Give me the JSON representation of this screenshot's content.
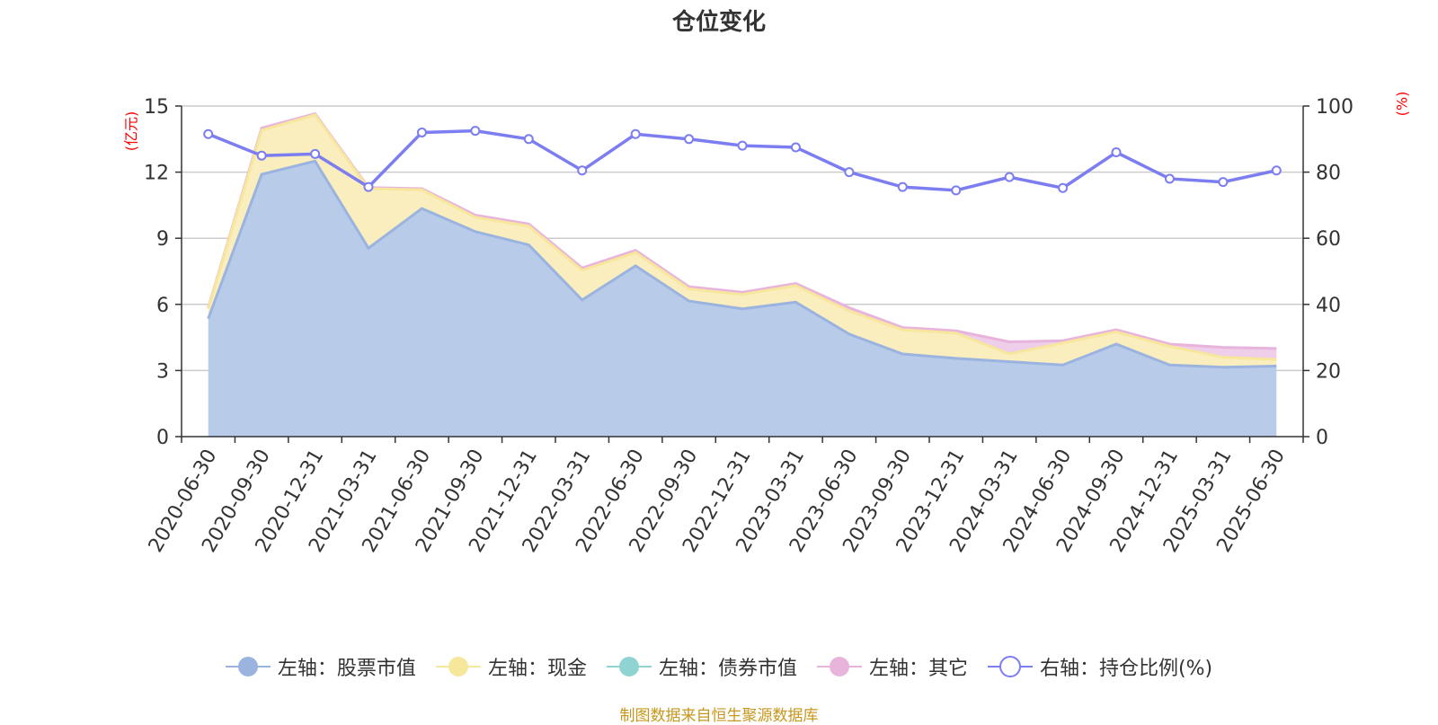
{
  "title": "仓位变化",
  "source": "制图数据来自恒生聚源数据库",
  "colors": {
    "stock": "#9bb4df",
    "stock_fill": "#b8cbe9",
    "cash": "#f7e79c",
    "cash_fill": "#faedbe",
    "bond": "#8fd3d3",
    "other": "#e8b4dc",
    "other_fill": "#ecc9e6",
    "ratio": "#7b7df0",
    "grid": "#cccccc",
    "axis": "#333333",
    "unit": "#ff0000"
  },
  "chart_data": {
    "type": "area",
    "title": "仓位变化",
    "categories": [
      "2020-06-30",
      "2020-09-30",
      "2020-12-31",
      "2021-03-31",
      "2021-06-30",
      "2021-09-30",
      "2021-12-31",
      "2022-03-31",
      "2022-06-30",
      "2022-09-30",
      "2022-12-31",
      "2023-03-31",
      "2023-06-30",
      "2023-09-30",
      "2023-12-31",
      "2024-03-31",
      "2024-06-30",
      "2024-09-30",
      "2024-12-31",
      "2025-03-31",
      "2025-06-30"
    ],
    "left_axis": {
      "unit": "(亿元)",
      "ylim": [
        0,
        15
      ],
      "ticks": [
        "0",
        "3",
        "6",
        "9",
        "12",
        "15"
      ]
    },
    "right_axis": {
      "unit": "(%)",
      "ylim": [
        0,
        100
      ],
      "ticks": [
        "0",
        "20",
        "40",
        "60",
        "80",
        "100"
      ]
    },
    "grid": true,
    "legend_position": "bottom",
    "series": [
      {
        "name": "左轴：股票市值",
        "axis": "left",
        "stacked": true,
        "values": [
          5.35,
          11.9,
          12.5,
          8.55,
          10.35,
          9.3,
          8.7,
          6.2,
          7.75,
          6.15,
          5.8,
          6.1,
          4.65,
          3.75,
          3.55,
          3.4,
          3.25,
          4.2,
          3.25,
          3.15,
          3.2
        ]
      },
      {
        "name": "左轴：现金",
        "axis": "left",
        "stacked": true,
        "values": [
          0.45,
          2.0,
          2.1,
          2.7,
          0.85,
          0.65,
          0.85,
          1.35,
          0.6,
          0.55,
          0.65,
          0.75,
          1.05,
          1.1,
          1.15,
          0.35,
          1.0,
          0.55,
          0.85,
          0.45,
          0.3
        ]
      },
      {
        "name": "左轴：债券市值",
        "axis": "left",
        "stacked": true,
        "values": [
          0,
          0,
          0,
          0,
          0,
          0,
          0,
          0,
          0,
          0,
          0,
          0,
          0,
          0,
          0,
          0,
          0,
          0,
          0,
          0,
          0
        ]
      },
      {
        "name": "左轴：其它",
        "axis": "left",
        "stacked": true,
        "values": [
          0.05,
          0.1,
          0.05,
          0.05,
          0.05,
          0.1,
          0.1,
          0.1,
          0.1,
          0.1,
          0.1,
          0.1,
          0.15,
          0.1,
          0.1,
          0.55,
          0.1,
          0.1,
          0.1,
          0.45,
          0.5
        ]
      },
      {
        "name": "右轴：持仓比例(%)",
        "axis": "right",
        "type": "line",
        "values": [
          91.5,
          85,
          85.5,
          75.5,
          92,
          92.5,
          90,
          80.5,
          91.5,
          90,
          88,
          87.5,
          80,
          75.5,
          74.5,
          78.5,
          75.2,
          86,
          78,
          77,
          80.5
        ]
      }
    ]
  },
  "legend": [
    {
      "label": "左轴：股票市值",
      "icon": "filled-circle-stock"
    },
    {
      "label": "左轴：现金",
      "icon": "filled-circle-cash"
    },
    {
      "label": "左轴：债券市值",
      "icon": "filled-circle-bond"
    },
    {
      "label": "左轴：其它",
      "icon": "filled-circle-other"
    },
    {
      "label": "右轴：持仓比例(%)",
      "icon": "hollow-circle-ratio"
    }
  ]
}
